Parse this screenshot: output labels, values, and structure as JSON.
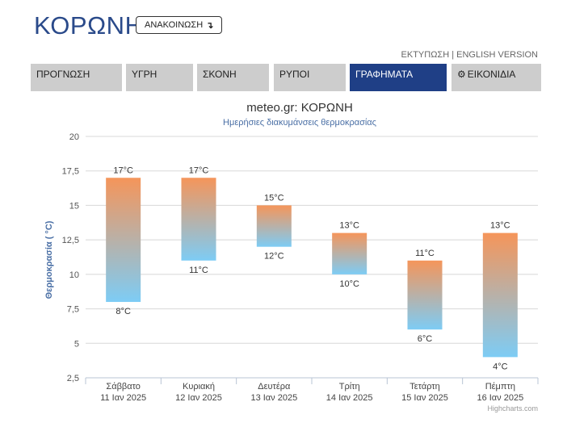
{
  "header": {
    "title": "ΚΟΡΩΝΗ",
    "announce_label": "ΑΝΑΚΟΙΝΩΣΗ",
    "announce_icon": "arrow-down-icon",
    "print_label": "ΕΚΤΥΠΩΣΗ",
    "separator": "|",
    "english_label": "ENGLISH VERSION"
  },
  "tabs": [
    {
      "label": "ΠΡΟΓΝΩΣΗ",
      "active": false
    },
    {
      "label": "ΥΓΡΗ",
      "active": false
    },
    {
      "label": "ΣΚΟΝΗ",
      "active": false
    },
    {
      "label": "ΡΥΠΟΙ",
      "active": false
    },
    {
      "label": "ΓΡΑΦΗΜΑΤΑ",
      "active": true
    },
    {
      "label": "ΕΙΚΟΝΙΔΙΑ",
      "active": false,
      "icon": "gear-icon"
    }
  ],
  "chart_data": {
    "type": "columnrange",
    "title": "meteo.gr: ΚΟΡΩΝΗ",
    "subtitle": "Ημερήσιες διακυμάνσεις θερμοκρασίας",
    "ylabel": "Θερμοκρασία ( °C)",
    "ylim": [
      2.5,
      20
    ],
    "yticks": [
      "2,5",
      "5",
      "7,5",
      "10",
      "12,5",
      "15",
      "17,5",
      "20"
    ],
    "ytick_values": [
      2.5,
      5,
      7.5,
      10,
      12.5,
      15,
      17.5,
      20
    ],
    "categories": [
      {
        "day": "Σάββατο",
        "date": "11 Ιαν 2025"
      },
      {
        "day": "Κυριακή",
        "date": "12 Ιαν 2025"
      },
      {
        "day": "Δευτέρα",
        "date": "13 Ιαν 2025"
      },
      {
        "day": "Τρίτη",
        "date": "14 Ιαν 2025"
      },
      {
        "day": "Τετάρτη",
        "date": "15 Ιαν 2025"
      },
      {
        "day": "Πέμπτη",
        "date": "16 Ιαν 2025"
      }
    ],
    "low": [
      8,
      11,
      12,
      10,
      6,
      4
    ],
    "high": [
      17,
      17,
      15,
      13,
      11,
      13
    ],
    "unit": "°C",
    "gradient_top_color": "#f5955a",
    "gradient_bottom_color": "#7dccf5",
    "grid": true,
    "credits": "Highcharts.com"
  }
}
